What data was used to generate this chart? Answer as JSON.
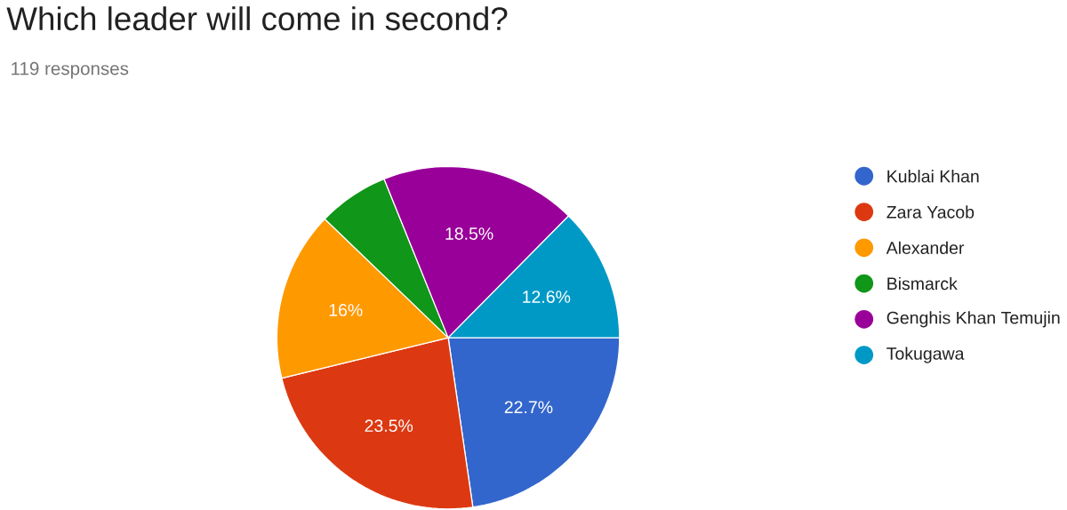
{
  "chart_data": {
    "type": "pie",
    "title": "Which leader will come in second?",
    "subtitle": "119 responses",
    "categories": [
      "Kublai Khan",
      "Zara Yacob",
      "Alexander",
      "Bismarck",
      "Genghis Khan Temujin",
      "Tokugawa"
    ],
    "values": [
      22.7,
      23.5,
      16,
      6.7,
      18.5,
      12.6
    ],
    "value_labels": [
      "22.7%",
      "23.5%",
      "16%",
      null,
      "18.5%",
      "12.6%"
    ],
    "colors": [
      "#3366cc",
      "#dc3912",
      "#ff9900",
      "#109618",
      "#990099",
      "#0099c6"
    ],
    "legend": "right"
  }
}
